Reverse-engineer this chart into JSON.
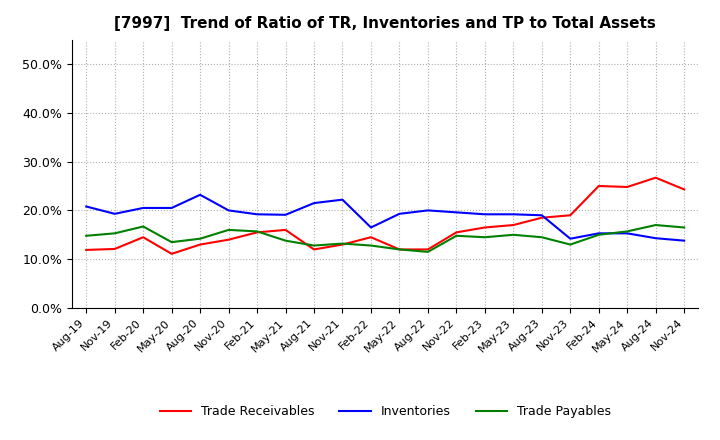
{
  "title": "[7997]  Trend of Ratio of TR, Inventories and TP to Total Assets",
  "x_labels": [
    "Aug-19",
    "Nov-19",
    "Feb-20",
    "May-20",
    "Aug-20",
    "Nov-20",
    "Feb-21",
    "May-21",
    "Aug-21",
    "Nov-21",
    "Feb-22",
    "May-22",
    "Aug-22",
    "Nov-22",
    "Feb-23",
    "May-23",
    "Aug-23",
    "Nov-23",
    "Feb-24",
    "May-24",
    "Aug-24",
    "Nov-24"
  ],
  "trade_receivables": [
    0.119,
    0.121,
    0.145,
    0.111,
    0.13,
    0.14,
    0.155,
    0.16,
    0.12,
    0.13,
    0.145,
    0.12,
    0.12,
    0.155,
    0.165,
    0.17,
    0.185,
    0.19,
    0.25,
    0.248,
    0.267,
    0.243
  ],
  "inventories": [
    0.208,
    0.193,
    0.205,
    0.205,
    0.232,
    0.2,
    0.192,
    0.191,
    0.215,
    0.222,
    0.165,
    0.193,
    0.2,
    0.196,
    0.192,
    0.192,
    0.19,
    0.142,
    0.153,
    0.153,
    0.143,
    0.138
  ],
  "trade_payables": [
    0.148,
    0.153,
    0.167,
    0.135,
    0.142,
    0.16,
    0.157,
    0.138,
    0.128,
    0.132,
    0.128,
    0.12,
    0.115,
    0.148,
    0.145,
    0.15,
    0.145,
    0.13,
    0.15,
    0.157,
    0.17,
    0.165
  ],
  "tr_color": "#ff0000",
  "inv_color": "#0000ff",
  "tp_color": "#008000",
  "ylim": [
    0.0,
    0.55
  ],
  "yticks": [
    0.0,
    0.1,
    0.2,
    0.3,
    0.4,
    0.5
  ],
  "background_color": "#ffffff",
  "grid_color": "#b0b0b0"
}
